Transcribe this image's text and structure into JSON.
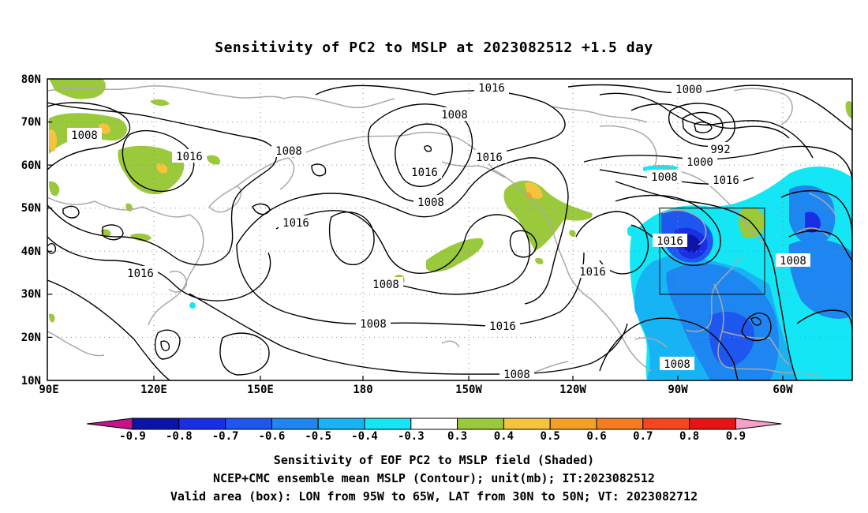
{
  "title": "Sensitivity of PC2 to MSLP at 2023082512 +1.5 day",
  "map": {
    "lat_labels": [
      "80N",
      "70N",
      "60N",
      "50N",
      "40N",
      "30N",
      "20N",
      "10N"
    ],
    "lon_labels": [
      "90E",
      "120E",
      "150E",
      "180",
      "150W",
      "120W",
      "90W",
      "60W"
    ],
    "extent": {
      "lon_west": "90E",
      "lon_east": "~45W",
      "lat_south": "10N",
      "lat_north": "80N"
    },
    "grid": "dotted",
    "valid_box": {
      "lon_from": "95W",
      "lon_to": "65W",
      "lat_from": "30N",
      "lat_to": "50N"
    },
    "contour_labels": [
      "1016",
      "1000",
      "1008",
      "1008",
      "992",
      "1016",
      "1008",
      "1000",
      "1016",
      "1008",
      "1016",
      "1016",
      "1008",
      "1016",
      "1016",
      "1008",
      "1016",
      "1016",
      "1008",
      "1008"
    ],
    "shading_colors": {
      "negative": [
        "#0a14a8",
        "#1a2ee6",
        "#1e56f0",
        "#1e86f0",
        "#17b4f5",
        "#14e6f5"
      ],
      "positive": [
        "#9ac93c",
        "#f5c43c",
        "#f5a025",
        "#f57d1e",
        "#f5461e",
        "#e61414"
      ]
    }
  },
  "colorbar": {
    "ticks": [
      "-0.9",
      "-0.8",
      "-0.7",
      "-0.6",
      "-0.5",
      "-0.4",
      "-0.3",
      "0.3",
      "0.4",
      "0.5",
      "0.6",
      "0.7",
      "0.8",
      "0.9"
    ],
    "colors": [
      "#0a14a8",
      "#1a2ee6",
      "#1e56f0",
      "#1e86f0",
      "#17b4f5",
      "#14e6f5",
      "#ffffff",
      "#9ac93c",
      "#f5c43c",
      "#f5a025",
      "#f57d1e",
      "#f5461e",
      "#e61414"
    ],
    "left_tip_color": "#c4148c",
    "right_tip_color": "#f5a0c8"
  },
  "footer": {
    "line1": "Sensitivity of EOF PC2 to MSLP field (Shaded)",
    "line2": "NCEP+CMC ensemble mean MSLP (Contour); unit(mb); IT:2023082512",
    "line3": "Valid area (box): LON from 95W to 65W, LAT from 30N to 50N; VT: 2023082712"
  }
}
